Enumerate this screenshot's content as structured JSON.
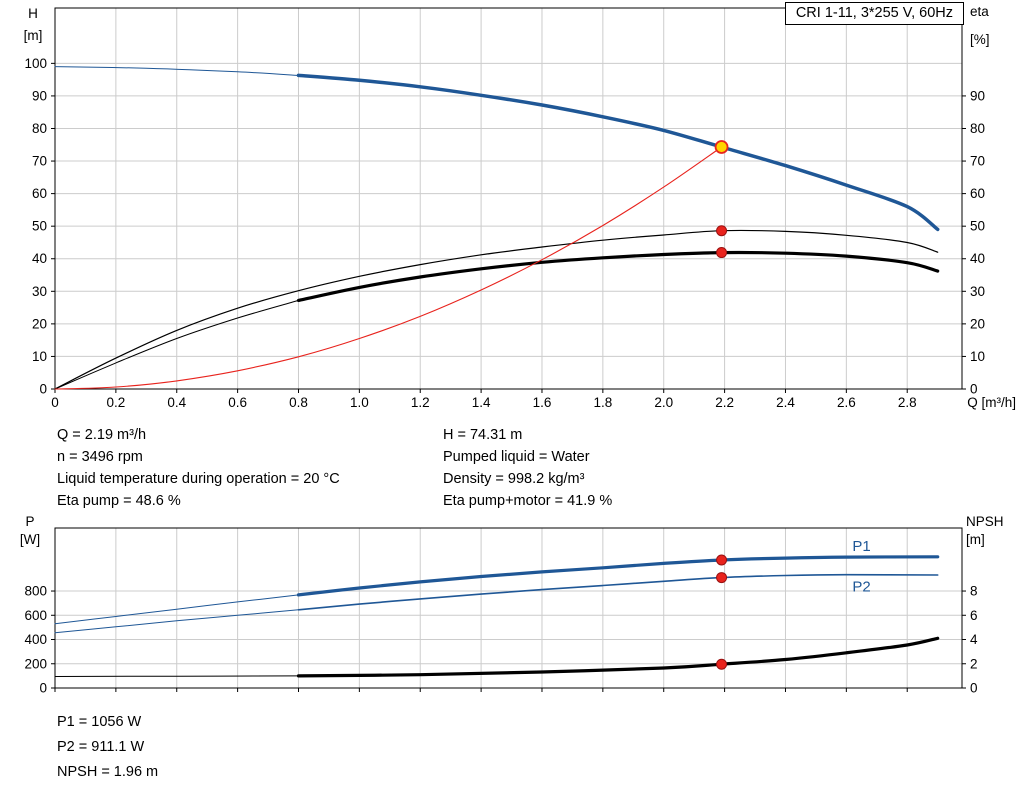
{
  "title_box": "CRI 1-11, 3*255 V, 60Hz",
  "colors": {
    "curve_blue": "#1f5796",
    "marker_red": "#e8231d",
    "marker_red_dark": "#991111",
    "duty_yellow": "#ffd400",
    "grid": "#cccccc",
    "black": "#000000"
  },
  "info_top": {
    "left": [
      "Q = 2.19 m³/h",
      "n = 3496 rpm",
      "Liquid temperature during operation = 20 °C",
      "Eta pump = 48.6 %"
    ],
    "right": [
      "H = 74.31 m",
      "Pumped liquid = Water",
      "Density = 998.2 kg/m³",
      "Eta pump+motor = 41.9 %"
    ]
  },
  "info_bottom": [
    "P1 = 1056 W",
    "P2 = 911.1 W",
    "NPSH = 1.96 m"
  ],
  "chart_data": [
    {
      "type": "line",
      "name": "head-efficiency-chart",
      "title": "CRI 1-11, 3*255 V, 60Hz",
      "x_axis": {
        "label": "Q [m³/h]",
        "min": 0,
        "max": 2.98,
        "ticks": [
          "0",
          "0.2",
          "0.4",
          "0.6",
          "0.8",
          "1.0",
          "1.2",
          "1.4",
          "1.6",
          "1.8",
          "2.0",
          "2.2",
          "2.4",
          "2.6",
          "2.8"
        ],
        "show_labels": true
      },
      "y_left": {
        "label_lines": [
          "H",
          "[m]"
        ],
        "min": 0,
        "max": 117,
        "ticks": [
          "0",
          "10",
          "20",
          "30",
          "40",
          "50",
          "60",
          "70",
          "80",
          "90",
          "100"
        ]
      },
      "y_right": {
        "label_lines": [
          "eta",
          "[%]"
        ],
        "min": 0,
        "max": 117,
        "ticks": [
          "0",
          "10",
          "20",
          "30",
          "40",
          "50",
          "60",
          "70",
          "80",
          "90"
        ]
      },
      "grid": true,
      "legend_position": "none",
      "series": [
        {
          "name": "pump-head-curve",
          "color": "#1f5796",
          "axis": "left",
          "thin": 1,
          "thick": 3.5,
          "thick_from": 0.8,
          "points": [
            [
              0,
              99
            ],
            [
              0.3,
              98.5
            ],
            [
              0.6,
              97.4
            ],
            [
              0.8,
              96.3
            ],
            [
              1.0,
              94.8
            ],
            [
              1.2,
              92.8
            ],
            [
              1.4,
              90.2
            ],
            [
              1.6,
              87.2
            ],
            [
              1.8,
              83.6
            ],
            [
              2.0,
              79.4
            ],
            [
              2.19,
              74.31
            ],
            [
              2.4,
              68.6
            ],
            [
              2.6,
              62.6
            ],
            [
              2.8,
              56.0
            ],
            [
              2.9,
              49.0
            ]
          ]
        },
        {
          "name": "eta-pump-curve",
          "color": "#000000",
          "axis": "left",
          "thin": 1.2,
          "thick": 1.2,
          "thick_from": null,
          "points": [
            [
              0,
              0
            ],
            [
              0.2,
              9.5
            ],
            [
              0.4,
              18
            ],
            [
              0.6,
              24.8
            ],
            [
              0.8,
              30.2
            ],
            [
              1.0,
              34.6
            ],
            [
              1.2,
              38.2
            ],
            [
              1.4,
              41.2
            ],
            [
              1.6,
              43.6
            ],
            [
              1.8,
              45.7
            ],
            [
              2.0,
              47.3
            ],
            [
              2.19,
              48.6
            ],
            [
              2.4,
              48.4
            ],
            [
              2.6,
              47.2
            ],
            [
              2.8,
              45.0
            ],
            [
              2.9,
              42.0
            ]
          ]
        },
        {
          "name": "eta-pump-motor-curve",
          "color": "#000000",
          "axis": "left",
          "thin": 1,
          "thick": 3.2,
          "thick_from": 0.8,
          "points": [
            [
              0,
              0
            ],
            [
              0.2,
              8.0
            ],
            [
              0.4,
              15.5
            ],
            [
              0.6,
              21.8
            ],
            [
              0.8,
              27.2
            ],
            [
              1.0,
              31.2
            ],
            [
              1.2,
              34.4
            ],
            [
              1.4,
              36.9
            ],
            [
              1.6,
              38.9
            ],
            [
              1.8,
              40.3
            ],
            [
              2.0,
              41.3
            ],
            [
              2.19,
              41.9
            ],
            [
              2.4,
              41.7
            ],
            [
              2.6,
              40.8
            ],
            [
              2.8,
              38.8
            ],
            [
              2.9,
              36.2
            ]
          ]
        },
        {
          "name": "system-curve",
          "color": "#e8231d",
          "axis": "left",
          "thin": 1.1,
          "thick": 1.1,
          "thick_from": null,
          "points": [
            [
              0,
              0
            ],
            [
              0.2,
              0.6
            ],
            [
              0.4,
              2.5
            ],
            [
              0.6,
              5.6
            ],
            [
              0.8,
              9.9
            ],
            [
              1.0,
              15.5
            ],
            [
              1.2,
              22.3
            ],
            [
              1.4,
              30.4
            ],
            [
              1.6,
              39.7
            ],
            [
              1.8,
              50.2
            ],
            [
              2.0,
              62.0
            ],
            [
              2.19,
              74.31
            ]
          ]
        }
      ],
      "markers": [
        {
          "name": "duty-point",
          "x": 2.19,
          "y": 74.31,
          "axis": "left",
          "kind": "duty"
        },
        {
          "name": "eta-pump-point",
          "x": 2.19,
          "y": 48.6,
          "axis": "left",
          "kind": "point"
        },
        {
          "name": "eta-pump-motor-point",
          "x": 2.19,
          "y": 41.9,
          "axis": "left",
          "kind": "point"
        }
      ],
      "annotations": []
    },
    {
      "type": "line",
      "name": "power-npsh-chart",
      "title": "",
      "x_axis": {
        "label": "",
        "min": 0,
        "max": 2.98,
        "ticks": [
          "0",
          "0.2",
          "0.4",
          "0.6",
          "0.8",
          "1.0",
          "1.2",
          "1.4",
          "1.6",
          "1.8",
          "2.0",
          "2.2",
          "2.4",
          "2.6",
          "2.8"
        ],
        "show_labels": false
      },
      "y_left": {
        "label_lines": [
          "P",
          "[W]"
        ],
        "min": 0,
        "max": 1320,
        "ticks": [
          "0",
          "200",
          "400",
          "600",
          "800"
        ]
      },
      "y_right": {
        "label_lines": [
          "NPSH",
          "[m]"
        ],
        "min": 0,
        "max": 13.2,
        "ticks": [
          "0",
          "2",
          "4",
          "6",
          "8"
        ]
      },
      "grid": true,
      "legend_position": "inline-right",
      "series": [
        {
          "name": "p1-curve",
          "color": "#1f5796",
          "axis": "left",
          "thin": 1,
          "thick": 3.2,
          "thick_from": 0.8,
          "points": [
            [
              0,
              530
            ],
            [
              0.2,
              590
            ],
            [
              0.4,
              650
            ],
            [
              0.6,
              710
            ],
            [
              0.8,
              768
            ],
            [
              1.0,
              825
            ],
            [
              1.2,
              875
            ],
            [
              1.4,
              920
            ],
            [
              1.6,
              958
            ],
            [
              1.8,
              992
            ],
            [
              2.0,
              1028
            ],
            [
              2.19,
              1056
            ],
            [
              2.4,
              1072
            ],
            [
              2.6,
              1080
            ],
            [
              2.9,
              1082
            ]
          ]
        },
        {
          "name": "p2-curve",
          "color": "#1f5796",
          "axis": "left",
          "thin": 1,
          "thick": 1.6,
          "thick_from": 0.8,
          "points": [
            [
              0,
              455
            ],
            [
              0.2,
              505
            ],
            [
              0.4,
              555
            ],
            [
              0.6,
              600
            ],
            [
              0.8,
              645
            ],
            [
              1.0,
              692
            ],
            [
              1.2,
              735
            ],
            [
              1.4,
              775
            ],
            [
              1.6,
              812
            ],
            [
              1.8,
              846
            ],
            [
              2.0,
              880
            ],
            [
              2.19,
              911
            ],
            [
              2.4,
              928
            ],
            [
              2.6,
              935
            ],
            [
              2.9,
              932
            ]
          ]
        },
        {
          "name": "npsh-curve",
          "color": "#000000",
          "axis": "right",
          "thin": 1,
          "thick": 3.2,
          "thick_from": 0.8,
          "points": [
            [
              0,
              0.95
            ],
            [
              0.4,
              0.97
            ],
            [
              0.8,
              1.0
            ],
            [
              1.2,
              1.1
            ],
            [
              1.6,
              1.32
            ],
            [
              2.0,
              1.65
            ],
            [
              2.19,
              1.96
            ],
            [
              2.4,
              2.35
            ],
            [
              2.6,
              2.9
            ],
            [
              2.8,
              3.55
            ],
            [
              2.9,
              4.1
            ]
          ]
        }
      ],
      "markers": [
        {
          "name": "p1-point",
          "x": 2.19,
          "y": 1056,
          "axis": "left",
          "kind": "point"
        },
        {
          "name": "p2-point",
          "x": 2.19,
          "y": 911.1,
          "axis": "left",
          "kind": "point"
        },
        {
          "name": "npsh-point",
          "x": 2.19,
          "y": 1.96,
          "axis": "right",
          "kind": "point"
        }
      ],
      "annotations": [
        {
          "text": "P1",
          "x": 2.62,
          "y": 1130,
          "axis": "left",
          "color": "#1f5796"
        },
        {
          "text": "P2",
          "x": 2.62,
          "y": 795,
          "axis": "left",
          "color": "#1f5796"
        }
      ]
    }
  ]
}
